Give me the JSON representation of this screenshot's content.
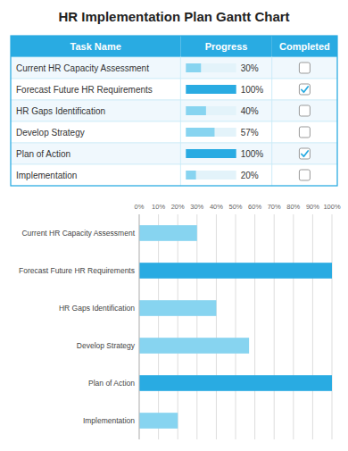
{
  "chart_data": [
    {
      "type": "table",
      "columns": [
        "Task Name",
        "Progress",
        "Completed"
      ],
      "categories": [
        "Current HR Capacity Assessment",
        "Forecast Future HR Requirements",
        "HR Gaps Identification",
        "Develop Strategy",
        "Plan of Action",
        "Implementation"
      ],
      "series": [
        {
          "values": [
            30,
            100,
            40,
            57,
            100,
            20
          ],
          "value_labels": [
            "30%",
            "100%",
            "40%",
            "57%",
            "100%",
            "20%"
          ]
        },
        {
          "values": [
            false,
            true,
            false,
            false,
            true,
            false
          ]
        }
      ]
    },
    {
      "type": "bar",
      "orientation": "horizontal",
      "title": "HR Implementation Plan Gantt Chart",
      "categories": [
        "Current HR Capacity Assessment",
        "Forecast Future HR Requirements",
        "HR Gaps Identification",
        "Develop Strategy",
        "Plan of Action",
        "Implementation"
      ],
      "values": [
        30,
        100,
        40,
        57,
        100,
        20
      ],
      "colors": [
        "#87D4F0",
        "#29ABE2",
        "#87D4F0",
        "#87D4F0",
        "#29ABE2",
        "#87D4F0"
      ],
      "xlim": [
        0,
        100
      ],
      "xticks": [
        {
          "value": 0,
          "label": "0%"
        },
        {
          "value": 10,
          "label": "10%"
        },
        {
          "value": 20,
          "label": "20%"
        },
        {
          "value": 30,
          "label": "30%"
        },
        {
          "value": 40,
          "label": "40%"
        },
        {
          "value": 50,
          "label": "50%"
        },
        {
          "value": 60,
          "label": "60%"
        },
        {
          "value": 70,
          "label": "70%"
        },
        {
          "value": 80,
          "label": "80%"
        },
        {
          "value": 90,
          "label": "90%"
        },
        {
          "value": 100,
          "label": "100%"
        }
      ],
      "grid": true
    }
  ]
}
